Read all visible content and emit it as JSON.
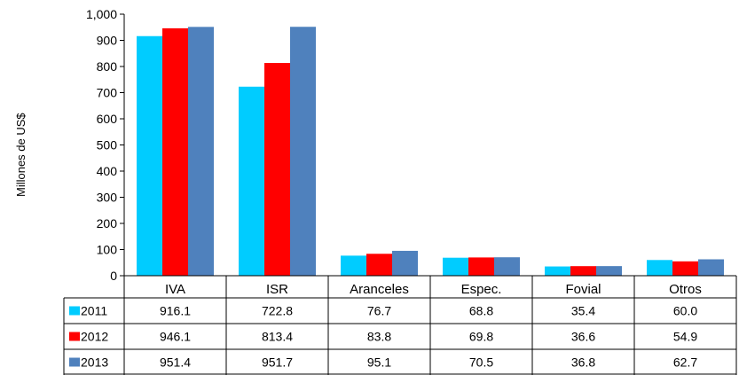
{
  "chart_data": {
    "type": "bar",
    "title": "",
    "xlabel": "",
    "ylabel": "Millones de US$",
    "ylim": [
      0,
      1000
    ],
    "yticks": [
      0,
      100,
      200,
      300,
      400,
      500,
      600,
      700,
      800,
      900,
      1000
    ],
    "ytick_labels": [
      "0",
      "100",
      "200",
      "300",
      "400",
      "500",
      "600",
      "700",
      "800",
      "900",
      "1,000"
    ],
    "grid": false,
    "legend": "data-table-left",
    "categories": [
      "IVA",
      "ISR",
      "Aranceles",
      "Espec.",
      "Fovial",
      "Otros"
    ],
    "series": [
      {
        "name": "2011",
        "color": "#00CCFF",
        "values": [
          916.1,
          722.8,
          76.7,
          68.8,
          35.4,
          60.0
        ],
        "labels": [
          "916.1",
          "722.8",
          "76.7",
          "68.8",
          "35.4",
          "60.0"
        ]
      },
      {
        "name": "2012",
        "color": "#FF0000",
        "values": [
          946.1,
          813.4,
          83.8,
          69.8,
          36.6,
          54.9
        ],
        "labels": [
          "946.1",
          "813.4",
          "83.8",
          "69.8",
          "36.6",
          "54.9"
        ]
      },
      {
        "name": "2013",
        "color": "#4F81BD",
        "values": [
          951.4,
          951.7,
          95.1,
          70.5,
          36.8,
          62.7
        ],
        "labels": [
          "951.4",
          "951.7",
          "95.1",
          "70.5",
          "36.8",
          "62.7"
        ]
      }
    ]
  }
}
